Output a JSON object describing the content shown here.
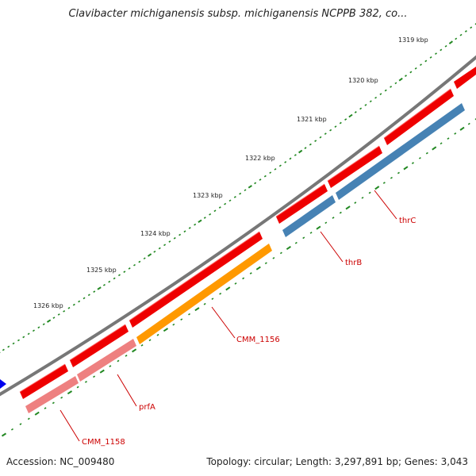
{
  "title": "Clavibacter michiganensis subsp. michiganensis NCPPB 382, co...",
  "footer": {
    "accession": "Accession: NC_009480",
    "summary": "Topology: circular; Length: 3,297,891 bp; Genes: 3,043"
  },
  "colors": {
    "backbone": "#777777",
    "forward_gene": "#ee0000",
    "cds_blue": "#4682b4",
    "cds_orange": "#ff9900",
    "cds_pink": "#ee8080",
    "tick": "#228822",
    "label": "#cc0000",
    "misc": "#0000ee"
  },
  "ruler": {
    "ticks": [
      {
        "label": "1319 kbp"
      },
      {
        "label": "1320 kbp"
      },
      {
        "label": "1321 kbp"
      },
      {
        "label": "1322 kbp"
      },
      {
        "label": "1323 kbp"
      },
      {
        "label": "1324 kbp"
      },
      {
        "label": "1325 kbp"
      },
      {
        "label": "1326 kbp"
      }
    ]
  },
  "gene_labels": [
    {
      "name": "thrC"
    },
    {
      "name": "thrB"
    },
    {
      "name": "CMM_1156"
    },
    {
      "name": "prfA"
    },
    {
      "name": "CMM_1158"
    }
  ]
}
